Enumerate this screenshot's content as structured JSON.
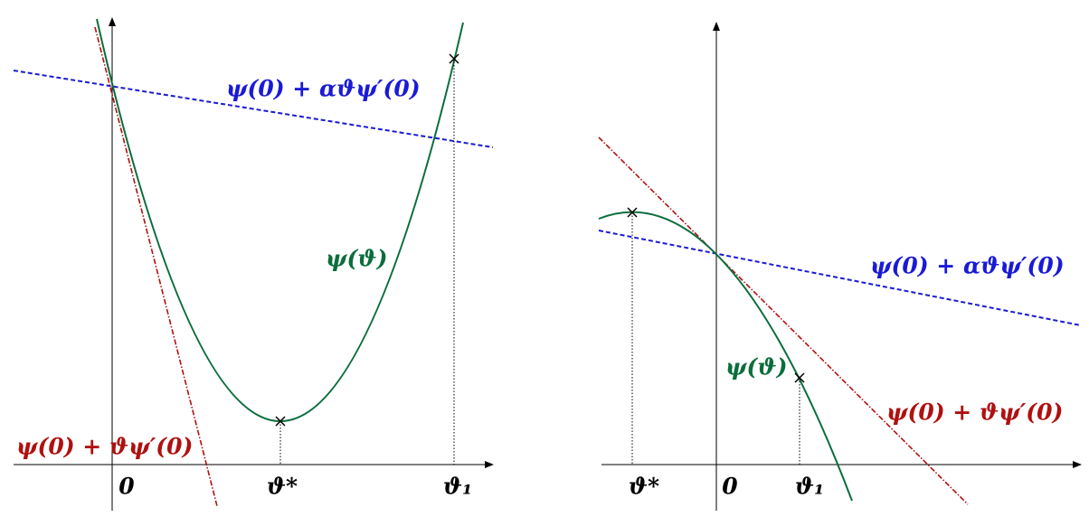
{
  "left": {
    "blue_line_label": "ψ(0) + αϑψ′(0)",
    "curve_label": "ψ(ϑ)",
    "red_line_label": "ψ(0) + ϑψ′(0)",
    "x_labels": [
      "0",
      "ϑ*",
      "ϑ₁"
    ]
  },
  "right": {
    "blue_line_label": "ψ(0) + αϑψ′(0)",
    "curve_label": "ψ(ϑ)",
    "red_line_label": "ψ(0) + ϑψ′(0)",
    "x_labels": [
      "ϑ*",
      "0",
      "ϑ₁"
    ]
  }
}
